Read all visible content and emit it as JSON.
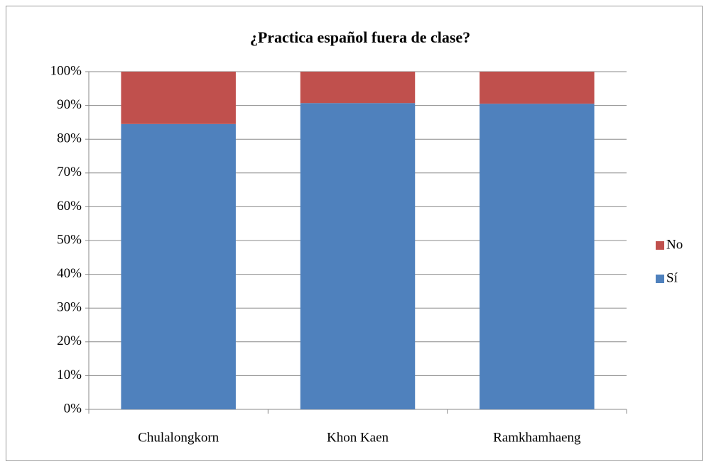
{
  "chart_data": {
    "type": "stacked_bar",
    "title": "¿Practica español fuera de clase?",
    "categories": [
      "Chulalongkorn",
      "Khon Kaen",
      "Ramkhamhaeng"
    ],
    "series": [
      {
        "name": "Sí",
        "color": "#4f81bd",
        "values": [
          84.5,
          90.7,
          90.5
        ]
      },
      {
        "name": "No",
        "color": "#c0504d",
        "values": [
          15.5,
          9.3,
          9.5
        ]
      }
    ],
    "ylim": [
      0,
      100
    ],
    "yticks": [
      {
        "value": 0,
        "label": "0%"
      },
      {
        "value": 10,
        "label": "10%"
      },
      {
        "value": 20,
        "label": "20%"
      },
      {
        "value": 30,
        "label": "30%"
      },
      {
        "value": 40,
        "label": "40%"
      },
      {
        "value": 50,
        "label": "50%"
      },
      {
        "value": 60,
        "label": "60%"
      },
      {
        "value": 70,
        "label": "70%"
      },
      {
        "value": 80,
        "label": "80%"
      },
      {
        "value": 90,
        "label": "90%"
      },
      {
        "value": 100,
        "label": "100%"
      }
    ],
    "grid": true,
    "legend": "right"
  }
}
